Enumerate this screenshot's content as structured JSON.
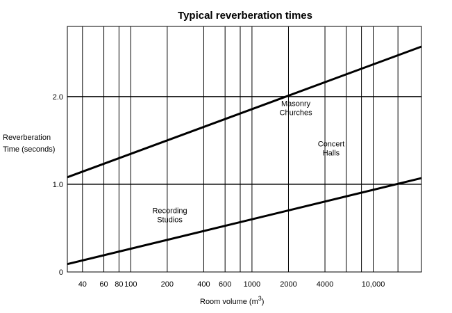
{
  "chart_data": {
    "type": "line",
    "title": "Typical reverberation times",
    "xlabel": "Room volume (m",
    "xlabel_sup": "3",
    "ylabel_lines": [
      "Reverberation",
      "Time (seconds)"
    ],
    "x_scale": "log",
    "xlim": [
      30,
      25000
    ],
    "ylim": [
      0,
      2.8
    ],
    "grid": true,
    "x_gridlines": [
      40,
      60,
      80,
      100,
      200,
      400,
      600,
      800,
      1000,
      2000,
      4000,
      6000,
      8000,
      10000,
      16000
    ],
    "y_gridlines": [
      1.0,
      2.0
    ],
    "x_tick_labels": [
      {
        "value": 40,
        "label": "40"
      },
      {
        "value": 60,
        "label": "60"
      },
      {
        "value": 80,
        "label": "80"
      },
      {
        "value": 100,
        "label": "100"
      },
      {
        "value": 200,
        "label": "200"
      },
      {
        "value": 400,
        "label": "400"
      },
      {
        "value": 600,
        "label": "600"
      },
      {
        "value": 1000,
        "label": "1000"
      },
      {
        "value": 2000,
        "label": "2000"
      },
      {
        "value": 4000,
        "label": "4000"
      },
      {
        "value": 10000,
        "label": "10,000"
      }
    ],
    "y_tick_labels": [
      {
        "value": 0,
        "label": "0"
      },
      {
        "value": 1.0,
        "label": "1.0"
      },
      {
        "value": 2.0,
        "label": "2.0"
      }
    ],
    "series": [
      {
        "x": [
          30,
          25000
        ],
        "y": [
          1.08,
          2.57
        ]
      },
      {
        "x": [
          30,
          25000
        ],
        "y": [
          0.09,
          1.07
        ]
      }
    ],
    "annotations": [
      {
        "lines": [
          "Masonry",
          "Churches"
        ],
        "x": 2300,
        "y": 1.89
      },
      {
        "lines": [
          "Concert",
          "Halls"
        ],
        "x": 4500,
        "y": 1.43
      },
      {
        "lines": [
          "Recording",
          "Studios"
        ],
        "x": 210,
        "y": 0.67
      }
    ]
  }
}
